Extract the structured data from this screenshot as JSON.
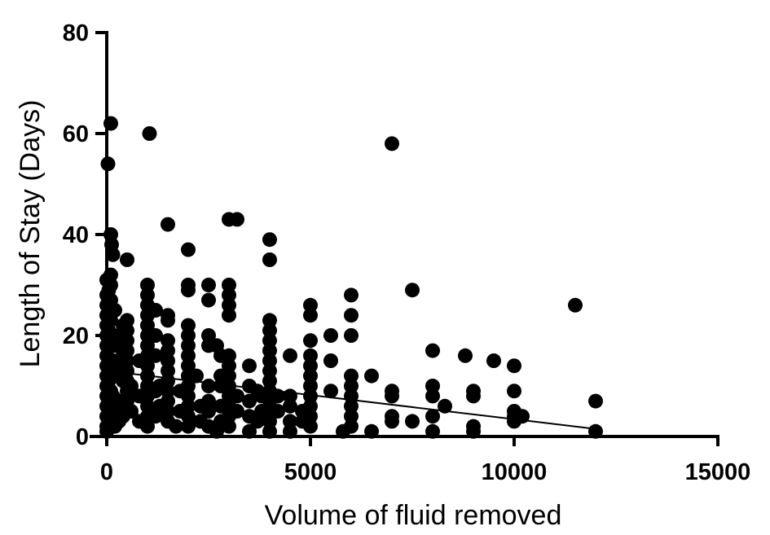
{
  "chart_data": {
    "type": "scatter",
    "title": "",
    "xlabel": "Volume of fluid removed",
    "ylabel": "Length of Stay (Days)",
    "xlim": [
      0,
      15000
    ],
    "ylim": [
      0,
      80
    ],
    "xticks": [
      0,
      5000,
      10000,
      15000
    ],
    "yticks": [
      0,
      20,
      40,
      60,
      80
    ],
    "grid": false,
    "legend": "none",
    "marker_color": "#000000",
    "trendline": {
      "type": "linear",
      "points": [
        [
          0,
          13
        ],
        [
          12000,
          1.5
        ]
      ]
    },
    "points": [
      [
        100,
        62
      ],
      [
        30,
        54
      ],
      [
        1050,
        60
      ],
      [
        7000,
        58
      ],
      [
        1500,
        42
      ],
      [
        3000,
        43
      ],
      [
        3200,
        43
      ],
      [
        2000,
        37
      ],
      [
        4000,
        39
      ],
      [
        4000,
        35
      ],
      [
        500,
        35
      ],
      [
        100,
        40
      ],
      [
        120,
        38
      ],
      [
        150,
        36
      ],
      [
        11500,
        26
      ],
      [
        7500,
        29
      ],
      [
        6000,
        28
      ],
      [
        5000,
        26
      ],
      [
        5000,
        24
      ],
      [
        6000,
        24
      ],
      [
        6000,
        20
      ],
      [
        5500,
        20
      ],
      [
        5500,
        15
      ],
      [
        8000,
        17
      ],
      [
        8800,
        16
      ],
      [
        9500,
        15
      ],
      [
        10000,
        14
      ],
      [
        10000,
        9
      ],
      [
        6500,
        12
      ],
      [
        7000,
        9
      ],
      [
        7000,
        8
      ],
      [
        7000,
        4
      ],
      [
        7000,
        3
      ],
      [
        7500,
        3
      ],
      [
        8000,
        10
      ],
      [
        8000,
        8
      ],
      [
        8000,
        4
      ],
      [
        8000,
        1
      ],
      [
        8300,
        6
      ],
      [
        9000,
        9
      ],
      [
        9000,
        8
      ],
      [
        9000,
        2
      ],
      [
        9000,
        1
      ],
      [
        10000,
        5
      ],
      [
        10000,
        4
      ],
      [
        10000,
        3
      ],
      [
        10200,
        4
      ],
      [
        12000,
        7
      ],
      [
        12000,
        1
      ],
      [
        6000,
        12
      ],
      [
        6000,
        10
      ],
      [
        6000,
        8
      ],
      [
        6000,
        6
      ],
      [
        6000,
        4
      ],
      [
        6000,
        2
      ],
      [
        5800,
        1
      ],
      [
        6500,
        1
      ],
      [
        5500,
        9
      ],
      [
        4500,
        16
      ],
      [
        4500,
        8
      ],
      [
        4500,
        6
      ],
      [
        4500,
        3
      ],
      [
        4500,
        1
      ],
      [
        5000,
        19
      ],
      [
        5000,
        16
      ],
      [
        5000,
        14
      ],
      [
        5000,
        12
      ],
      [
        5000,
        10
      ],
      [
        5000,
        8
      ],
      [
        5000,
        6
      ],
      [
        5000,
        4
      ],
      [
        5000,
        2
      ],
      [
        4200,
        8
      ],
      [
        4200,
        5
      ],
      [
        4800,
        5
      ],
      [
        4800,
        3
      ],
      [
        4000,
        23
      ],
      [
        4000,
        21
      ],
      [
        4000,
        19
      ],
      [
        4000,
        17
      ],
      [
        4000,
        15
      ],
      [
        4000,
        13
      ],
      [
        4000,
        11
      ],
      [
        4000,
        9
      ],
      [
        4000,
        7
      ],
      [
        4000,
        5
      ],
      [
        4000,
        3
      ],
      [
        4000,
        1
      ],
      [
        3800,
        8
      ],
      [
        3800,
        5
      ],
      [
        3500,
        14
      ],
      [
        3500,
        10
      ],
      [
        3500,
        7
      ],
      [
        3500,
        4
      ],
      [
        3500,
        1
      ],
      [
        3700,
        9
      ],
      [
        3700,
        3
      ],
      [
        3000,
        30
      ],
      [
        3000,
        28
      ],
      [
        3000,
        26
      ],
      [
        3000,
        24
      ],
      [
        3000,
        16
      ],
      [
        3000,
        14
      ],
      [
        3000,
        12
      ],
      [
        3000,
        10
      ],
      [
        3000,
        8
      ],
      [
        3000,
        6
      ],
      [
        3000,
        4
      ],
      [
        3000,
        2
      ],
      [
        3200,
        5
      ],
      [
        3200,
        8
      ],
      [
        2800,
        16
      ],
      [
        2800,
        12
      ],
      [
        2800,
        10
      ],
      [
        2800,
        6
      ],
      [
        2800,
        3
      ],
      [
        2700,
        18
      ],
      [
        2700,
        1
      ],
      [
        2500,
        30
      ],
      [
        2500,
        27
      ],
      [
        2500,
        20
      ],
      [
        2500,
        18
      ],
      [
        2500,
        10
      ],
      [
        2500,
        7
      ],
      [
        2500,
        5
      ],
      [
        2500,
        2
      ],
      [
        2300,
        6
      ],
      [
        2300,
        3
      ],
      [
        2000,
        30
      ],
      [
        2000,
        29
      ],
      [
        2000,
        22
      ],
      [
        2000,
        20
      ],
      [
        2000,
        18
      ],
      [
        2000,
        16
      ],
      [
        2000,
        14
      ],
      [
        2000,
        12
      ],
      [
        2000,
        10
      ],
      [
        2000,
        8
      ],
      [
        2000,
        6
      ],
      [
        2000,
        4
      ],
      [
        2000,
        2
      ],
      [
        2200,
        12
      ],
      [
        1800,
        5
      ],
      [
        1800,
        9
      ],
      [
        1500,
        24
      ],
      [
        1500,
        23
      ],
      [
        1500,
        19
      ],
      [
        1500,
        17
      ],
      [
        1500,
        15
      ],
      [
        1500,
        13
      ],
      [
        1500,
        11
      ],
      [
        1500,
        9
      ],
      [
        1500,
        7
      ],
      [
        1500,
        5
      ],
      [
        1500,
        3
      ],
      [
        1300,
        6
      ],
      [
        1300,
        10
      ],
      [
        1700,
        2
      ],
      [
        1000,
        30
      ],
      [
        1000,
        28
      ],
      [
        1000,
        26
      ],
      [
        1000,
        24
      ],
      [
        1000,
        22
      ],
      [
        1000,
        20
      ],
      [
        1000,
        18
      ],
      [
        1000,
        16
      ],
      [
        1000,
        14
      ],
      [
        1000,
        12
      ],
      [
        1000,
        10
      ],
      [
        1000,
        8
      ],
      [
        1000,
        6
      ],
      [
        1000,
        4
      ],
      [
        1000,
        2
      ],
      [
        1200,
        25
      ],
      [
        1200,
        20
      ],
      [
        1200,
        16
      ],
      [
        1200,
        9
      ],
      [
        1200,
        4
      ],
      [
        800,
        15
      ],
      [
        800,
        8
      ],
      [
        800,
        3
      ],
      [
        600,
        10
      ],
      [
        600,
        5
      ],
      [
        500,
        23
      ],
      [
        500,
        21
      ],
      [
        500,
        19
      ],
      [
        500,
        17
      ],
      [
        500,
        15
      ],
      [
        500,
        13
      ],
      [
        500,
        11
      ],
      [
        500,
        9
      ],
      [
        500,
        7
      ],
      [
        500,
        5
      ],
      [
        400,
        22
      ],
      [
        400,
        16
      ],
      [
        400,
        11
      ],
      [
        400,
        4
      ],
      [
        300,
        20
      ],
      [
        300,
        14
      ],
      [
        300,
        7
      ],
      [
        300,
        3
      ],
      [
        200,
        25
      ],
      [
        200,
        18
      ],
      [
        200,
        12
      ],
      [
        200,
        6
      ],
      [
        200,
        2
      ],
      [
        0,
        31
      ],
      [
        0,
        28
      ],
      [
        0,
        26
      ],
      [
        0,
        24
      ],
      [
        0,
        22
      ],
      [
        0,
        20
      ],
      [
        0,
        18
      ],
      [
        0,
        16
      ],
      [
        0,
        14
      ],
      [
        0,
        12
      ],
      [
        0,
        10
      ],
      [
        0,
        8
      ],
      [
        0,
        6
      ],
      [
        0,
        4
      ],
      [
        0,
        2
      ],
      [
        0,
        1
      ],
      [
        100,
        32
      ],
      [
        100,
        30
      ],
      [
        100,
        27
      ],
      [
        100,
        23
      ],
      [
        100,
        19
      ],
      [
        100,
        13
      ],
      [
        100,
        9
      ],
      [
        100,
        5
      ],
      [
        50,
        29
      ],
      [
        50,
        21
      ],
      [
        50,
        11
      ],
      [
        50,
        3
      ],
      [
        150,
        15
      ],
      [
        150,
        8
      ]
    ]
  }
}
